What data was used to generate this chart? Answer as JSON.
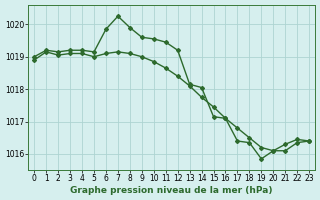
{
  "line1_x": [
    0,
    1,
    2,
    3,
    4,
    5,
    6,
    7,
    8,
    9,
    10,
    11,
    12,
    13,
    14,
    15,
    16,
    17,
    18,
    19,
    20,
    21,
    22,
    23
  ],
  "line1_y": [
    1019.0,
    1019.2,
    1019.15,
    1019.2,
    1019.2,
    1019.15,
    1019.85,
    1020.25,
    1019.9,
    1019.6,
    1019.55,
    1019.45,
    1019.2,
    1018.15,
    1018.05,
    1017.15,
    1017.1,
    1016.4,
    1016.35,
    1015.85,
    1016.1,
    1016.3,
    1016.45,
    1016.4
  ],
  "line2_x": [
    0,
    1,
    2,
    3,
    4,
    5,
    6,
    7,
    8,
    9,
    10,
    11,
    12,
    13,
    14,
    15,
    16,
    17,
    18,
    19,
    20,
    21,
    22,
    23
  ],
  "line2_y": [
    1018.9,
    1019.15,
    1019.05,
    1019.1,
    1019.1,
    1019.0,
    1019.1,
    1019.15,
    1019.1,
    1019.0,
    1018.85,
    1018.65,
    1018.4,
    1018.1,
    1017.75,
    1017.45,
    1017.1,
    1016.8,
    1016.5,
    1016.2,
    1016.1,
    1016.1,
    1016.35,
    1016.4
  ],
  "line_color": "#2d6a2d",
  "bg_color": "#d6efee",
  "grid_color": "#aed4d2",
  "ylim": [
    1015.5,
    1020.6
  ],
  "yticks": [
    1016,
    1017,
    1018,
    1019,
    1020
  ],
  "xticks": [
    0,
    1,
    2,
    3,
    4,
    5,
    6,
    7,
    8,
    9,
    10,
    11,
    12,
    13,
    14,
    15,
    16,
    17,
    18,
    19,
    20,
    21,
    22,
    23
  ],
  "xlabel": "Graphe pression niveau de la mer (hPa)",
  "xlabel_fontsize": 6.5,
  "tick_fontsize": 5.5,
  "marker": "D",
  "markersize": 2.0,
  "linewidth": 1.0
}
